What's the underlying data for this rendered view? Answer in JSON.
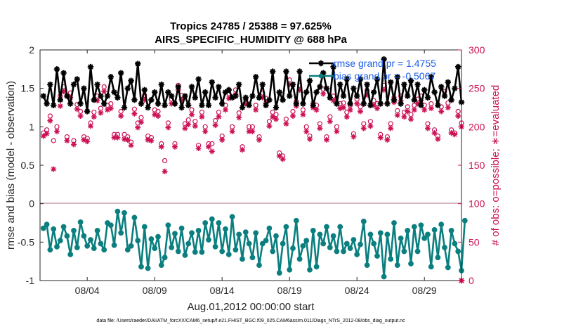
{
  "chart_data": {
    "type": "line",
    "title": "Tropics 24785 / 25388 = 97.625%",
    "subtitle": "AIRS_SPECIFIC_HUMIDITY @ 688 hPa",
    "xlabel": "Aug.01,2012 00:00:00 start",
    "ylabel_left": "rmse and bias (model - observation)",
    "ylabel_right": "# of obs: o=possible; ∗=evaluated",
    "footnote": "data file: /Users/raeder/DAI/ATM_forcXX/CAM6_setup/f.e21.FHIST_BGC.f09_025.CAM6assim.011/Diags_NTrS_2012-08/obs_diag_output.nc",
    "xlim": [
      0.5,
      31.75
    ],
    "ylim_left": [
      -1,
      2
    ],
    "ylim_right": [
      0,
      300
    ],
    "x_tick_positions": [
      4,
      9,
      14,
      19,
      24,
      29
    ],
    "x_tick_labels": [
      "08/04",
      "08/09",
      "08/14",
      "08/19",
      "08/24",
      "08/29"
    ],
    "y_left_ticks": [
      -1,
      -0.5,
      0,
      0.5,
      1,
      1.5,
      2
    ],
    "y_left_tick_labels": [
      "-1",
      "-0.5",
      "0",
      "0.5",
      "1",
      "1.5",
      "2"
    ],
    "y_right_ticks": [
      0,
      50,
      100,
      150,
      200,
      250,
      300
    ],
    "y_right_tick_labels": [
      "0",
      "50",
      "100",
      "150",
      "200",
      "250",
      "300"
    ],
    "x_start": 0.75,
    "x_step": 0.25,
    "legend": {
      "position": "top-right",
      "entries": [
        {
          "label": "rmse grand pr = 1.4755",
          "color": "#000000"
        },
        {
          "label": "bias grand pr = -0.5067",
          "color": "#0b7f7f"
        }
      ]
    },
    "series": [
      {
        "name": "rmse",
        "color": "#000000",
        "marker": "star",
        "values": [
          1.4,
          1.3,
          1.55,
          1.28,
          1.75,
          1.35,
          1.7,
          1.4,
          1.3,
          1.55,
          1.62,
          1.3,
          1.5,
          1.2,
          1.78,
          1.35,
          1.55,
          1.4,
          1.3,
          1.4,
          1.65,
          1.45,
          1.38,
          1.7,
          1.25,
          1.5,
          1.6,
          1.35,
          1.82,
          1.3,
          1.48,
          1.25,
          1.35,
          1.45,
          1.3,
          1.55,
          1.28,
          1.45,
          1.4,
          1.3,
          1.52,
          1.25,
          1.4,
          1.28,
          1.52,
          1.38,
          1.62,
          1.28,
          1.45,
          1.28,
          1.58,
          1.38,
          1.52,
          1.3,
          1.45,
          1.48,
          1.38,
          1.4,
          1.55,
          1.25,
          1.38,
          1.28,
          1.4,
          1.65,
          1.38,
          1.55,
          1.28,
          1.35,
          1.72,
          1.25,
          1.45,
          1.35,
          1.72,
          1.4,
          1.55,
          1.3,
          1.72,
          1.3,
          1.45,
          1.6,
          1.28,
          1.45,
          1.52,
          1.7,
          1.5,
          1.38,
          1.78,
          1.3,
          1.55,
          1.4,
          1.62,
          1.3,
          1.5,
          1.4,
          1.62,
          1.3,
          1.55,
          1.28,
          1.45,
          1.62,
          1.3,
          1.88,
          1.3,
          1.58,
          1.35,
          1.65,
          1.3,
          1.55,
          1.4,
          1.6,
          1.35,
          1.55,
          1.28,
          1.48,
          1.38,
          1.65,
          1.45,
          1.28,
          1.52,
          1.4,
          1.58,
          1.35,
          1.5,
          1.78,
          1.32
        ]
      },
      {
        "name": "bias",
        "color": "#0b7f7f",
        "marker": "circle",
        "values": [
          -0.32,
          -0.27,
          -0.6,
          -0.33,
          -0.56,
          -0.48,
          -0.3,
          -0.42,
          -0.66,
          -0.35,
          -0.57,
          -0.24,
          -0.42,
          -0.55,
          -0.47,
          -0.58,
          -0.35,
          -0.52,
          -0.6,
          -0.25,
          -0.28,
          -0.54,
          -0.1,
          -0.38,
          -0.12,
          -0.6,
          -0.55,
          -0.18,
          -0.48,
          -0.82,
          -0.3,
          -0.84,
          -0.46,
          -0.58,
          -0.43,
          -0.8,
          -0.7,
          -0.28,
          -0.57,
          -0.39,
          -0.62,
          -0.32,
          -0.67,
          -0.52,
          -0.38,
          -0.63,
          -0.35,
          -0.63,
          -0.25,
          -0.47,
          -0.2,
          -0.56,
          -0.25,
          -0.62,
          -0.33,
          -0.66,
          -0.17,
          -0.6,
          -0.4,
          -0.72,
          -0.37,
          -0.52,
          -0.7,
          -0.38,
          -0.8,
          -0.52,
          -0.48,
          -0.32,
          -0.62,
          -0.42,
          -0.9,
          -0.52,
          -0.3,
          -0.86,
          -0.58,
          -0.22,
          -0.72,
          -0.55,
          -0.48,
          -0.86,
          -0.35,
          -0.82,
          -0.4,
          -0.52,
          -0.3,
          -0.57,
          -0.42,
          -0.62,
          -0.3,
          -0.62,
          -0.52,
          -0.58,
          -0.47,
          -0.66,
          -0.53,
          -0.23,
          -0.8,
          -0.4,
          -0.52,
          -0.68,
          -0.38,
          -0.95,
          -0.4,
          -0.72,
          -0.25,
          -0.8,
          -0.45,
          -0.62,
          -0.35,
          -0.78,
          -0.3,
          -0.62,
          -0.28,
          -0.45,
          -0.4,
          -0.82,
          -0.34,
          -0.7,
          -0.27,
          -0.57,
          -0.83,
          -0.35,
          -0.52,
          -0.62,
          -0.87,
          -0.22
        ]
      },
      {
        "name": "possible (o)",
        "color": "#cc1155",
        "marker": "o",
        "axis": "right",
        "values": [
          192,
          196,
          214,
          182,
          200,
          240,
          252,
          187,
          244,
          182,
          229,
          220,
          187,
          185,
          205,
          219,
          240,
          224,
          252,
          228,
          230,
          190,
          190,
          220,
          190,
          187,
          180,
          223,
          205,
          212,
          241,
          188,
          186,
          222,
          220,
          178,
          156,
          205,
          236,
          178,
          254,
          241,
          204,
          209,
          222,
          207,
          176,
          219,
          200,
          178,
          178,
          208,
          219,
          188,
          228,
          243,
          200,
          248,
          218,
          174,
          236,
          200,
          200,
          228,
          187,
          244,
          237,
          207,
          219,
          216,
          166,
          162,
          210,
          261,
          220,
          233,
          254,
          222,
          200,
          188,
          231,
          228,
          204,
          249,
          187,
          213,
          240,
          200,
          230,
          231,
          219,
          228,
          191,
          236,
          226,
          204,
          247,
          207,
          234,
          230,
          190,
          254,
          187,
          204,
          238,
          221,
          240,
          219,
          226,
          216,
          228,
          236,
          240,
          228,
          204,
          230,
          196,
          188,
          226,
          246,
          231,
          196,
          192,
          220,
          205
        ]
      },
      {
        "name": "evaluated (∗)",
        "color": "#cc1155",
        "marker": "asterisk",
        "axis": "right",
        "values": [
          188,
          191,
          208,
          145,
          194,
          227,
          246,
          182,
          238,
          177,
          223,
          214,
          183,
          181,
          201,
          213,
          234,
          218,
          246,
          222,
          224,
          186,
          186,
          214,
          184,
          183,
          176,
          217,
          199,
          206,
          235,
          183,
          182,
          216,
          214,
          174,
          142,
          199,
          230,
          174,
          248,
          235,
          198,
          203,
          216,
          201,
          172,
          213,
          194,
          174,
          168,
          202,
          213,
          183,
          222,
          237,
          194,
          242,
          212,
          170,
          230,
          194,
          194,
          222,
          183,
          238,
          231,
          201,
          213,
          210,
          162,
          158,
          204,
          255,
          214,
          227,
          248,
          216,
          194,
          184,
          225,
          222,
          198,
          243,
          183,
          207,
          234,
          194,
          224,
          225,
          213,
          222,
          187,
          230,
          220,
          198,
          241,
          201,
          228,
          224,
          186,
          248,
          183,
          198,
          232,
          215,
          234,
          213,
          220,
          210,
          222,
          230,
          234,
          222,
          198,
          224,
          192,
          184,
          220,
          240,
          225,
          192,
          190,
          214,
          200
        ]
      }
    ]
  }
}
